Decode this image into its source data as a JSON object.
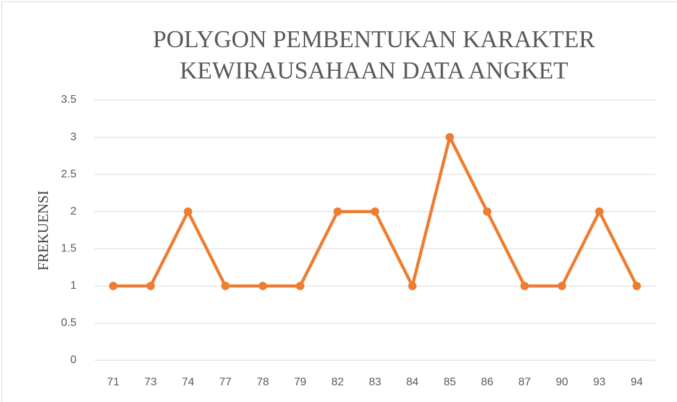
{
  "chart_data": {
    "type": "line",
    "title": [
      "POLYGON PEMBENTUKAN KARAKTER",
      "KEWIRAUSAHAAN DATA ANGKET"
    ],
    "y_label": "FREKUENSI",
    "categories": [
      "71",
      "73",
      "74",
      "77",
      "78",
      "79",
      "82",
      "83",
      "84",
      "85",
      "86",
      "87",
      "90",
      "93",
      "94"
    ],
    "values": [
      1,
      1,
      2,
      1,
      1,
      1,
      2,
      2,
      1,
      3,
      2,
      1,
      1,
      2,
      1
    ],
    "color": "#ed7d31",
    "ylim": [
      0,
      3.5
    ],
    "yticks": [
      0,
      0.5,
      1,
      1.5,
      2,
      2.5,
      3,
      3.5
    ],
    "grid": true
  }
}
